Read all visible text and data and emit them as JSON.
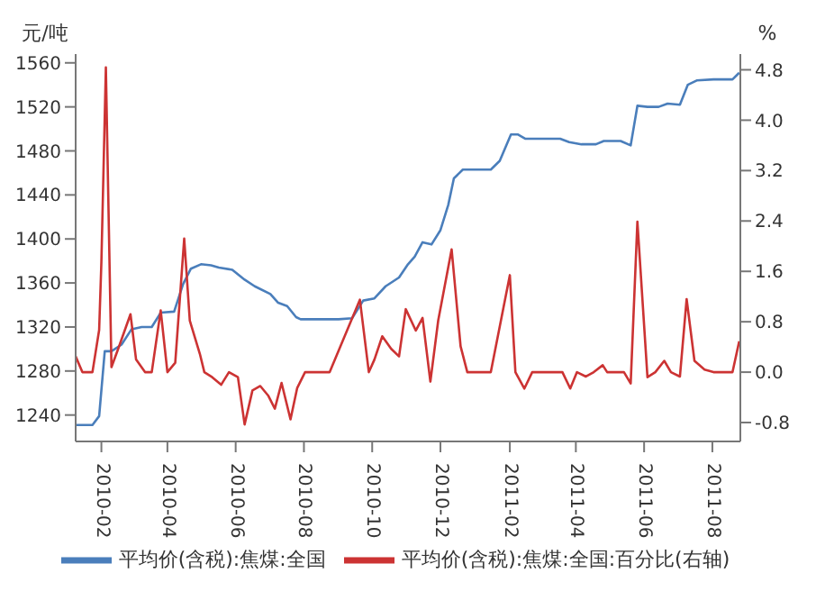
{
  "chart_data": {
    "type": "line",
    "ylabel": "元/吨",
    "y2label": "%",
    "xlim": [
      "2010-01-09",
      "2011-08-26"
    ],
    "xticks": [
      "2010-02",
      "2010-04",
      "2010-06",
      "2010-08",
      "2010-10",
      "2010-12",
      "2011-02",
      "2011-04",
      "2011-06",
      "2011-08"
    ],
    "ylim": [
      1216,
      1568
    ],
    "yticks": [
      1240,
      1280,
      1320,
      1360,
      1400,
      1440,
      1480,
      1520,
      1560
    ],
    "y2lim": [
      -1.1,
      5.05
    ],
    "y2ticks": [
      {
        "value": -0.8,
        "label": "-0.8"
      },
      {
        "value": 0,
        "label": "0.0"
      },
      0.8,
      1.6,
      2.4,
      3.2,
      {
        "value": 4,
        "label": "4.0"
      },
      4.8
    ],
    "legend": "bottom",
    "series": [
      {
        "name": "平均价(含税):焦煤:全国",
        "color": "#4a7ebb",
        "x": [
          "2010-01-09",
          "2010-01-24",
          "2010-01-30",
          "2010-02-04",
          "2010-02-10",
          "2010-02-19",
          "2010-02-28",
          "2010-03-09",
          "2010-03-18",
          "2010-03-26",
          "2010-04-07",
          "2010-04-15",
          "2010-04-22",
          "2010-05-01",
          "2010-05-10",
          "2010-05-17",
          "2010-05-29",
          "2010-06-09",
          "2010-06-18",
          "2010-07-02",
          "2010-07-09",
          "2010-07-17",
          "2010-07-25",
          "2010-07-29",
          "2010-09-01",
          "2010-09-13",
          "2010-09-23",
          "2010-10-03",
          "2010-10-13",
          "2010-10-25",
          "2010-11-02",
          "2010-11-08",
          "2010-11-15",
          "2010-11-23",
          "2010-12-01",
          "2010-12-08",
          "2010-12-13",
          "2010-12-21",
          "2011-01-15",
          "2011-01-23",
          "2011-02-02",
          "2011-02-08",
          "2011-02-15",
          "2011-03-18",
          "2011-03-26",
          "2011-04-06",
          "2011-04-19",
          "2011-04-26",
          "2011-05-11",
          "2011-05-20",
          "2011-05-26",
          "2011-06-04",
          "2011-06-14",
          "2011-06-22",
          "2011-07-03",
          "2011-07-10",
          "2011-07-18",
          "2011-08-02",
          "2011-08-19",
          "2011-08-25"
        ],
        "values": [
          1231,
          1231,
          1239,
          1298,
          1298,
          1304,
          1318,
          1320,
          1320,
          1333,
          1334,
          1359,
          1373,
          1377,
          1376,
          1374,
          1372,
          1363,
          1357,
          1350,
          1342,
          1339,
          1329,
          1327,
          1327,
          1328,
          1344,
          1346,
          1357,
          1365,
          1377,
          1384,
          1397,
          1395,
          1408,
          1431,
          1455,
          1463,
          1463,
          1471,
          1495,
          1495,
          1491,
          1491,
          1488,
          1486,
          1486,
          1489,
          1489,
          1485,
          1521,
          1520,
          1520,
          1523,
          1522,
          1540,
          1544,
          1545,
          1545,
          1551
        ]
      },
      {
        "name": "平均价(含税):焦煤:全国:百分比(右轴)",
        "color": "#cc3333",
        "axis": "y2",
        "x": [
          "2010-01-09",
          "2010-01-15",
          "2010-01-24",
          "2010-01-30",
          "2010-02-01",
          "2010-02-05",
          "2010-02-10",
          "2010-02-16",
          "2010-02-27",
          "2010-03-04",
          "2010-03-12",
          "2010-03-18",
          "2010-03-26",
          "2010-04-01",
          "2010-04-08",
          "2010-04-16",
          "2010-04-21",
          "2010-04-30",
          "2010-05-04",
          "2010-05-11",
          "2010-05-19",
          "2010-05-26",
          "2010-06-03",
          "2010-06-09",
          "2010-06-16",
          "2010-06-23",
          "2010-06-30",
          "2010-07-06",
          "2010-07-12",
          "2010-07-20",
          "2010-07-26",
          "2010-08-02",
          "2010-08-24",
          "2010-09-20",
          "2010-09-28",
          "2010-10-03",
          "2010-10-10",
          "2010-10-18",
          "2010-10-25",
          "2010-10-31",
          "2010-11-09",
          "2010-11-15",
          "2010-11-22",
          "2010-11-29",
          "2010-12-11",
          "2010-12-19",
          "2010-12-25",
          "2011-01-15",
          "2011-02-01",
          "2011-02-06",
          "2011-02-14",
          "2011-02-21",
          "2011-03-20",
          "2011-03-27",
          "2011-04-02",
          "2011-04-10",
          "2011-04-17",
          "2011-04-25",
          "2011-04-29",
          "2011-05-14",
          "2011-05-20",
          "2011-05-26",
          "2011-06-04",
          "2011-06-11",
          "2011-06-19",
          "2011-06-25",
          "2011-07-03",
          "2011-07-09",
          "2011-07-16",
          "2011-07-25",
          "2011-08-02",
          "2011-08-19",
          "2011-08-25"
        ],
        "values": [
          0.25,
          0,
          0,
          0.67,
          1.75,
          4.84,
          0.08,
          0.37,
          0.92,
          0.2,
          0,
          0,
          0.98,
          0,
          0.15,
          2.12,
          0.82,
          0.29,
          0,
          -0.08,
          -0.2,
          0,
          -0.08,
          -0.83,
          -0.29,
          -0.22,
          -0.37,
          -0.58,
          -0.17,
          -0.75,
          -0.25,
          0,
          0,
          1.15,
          0,
          0.2,
          0.57,
          0.37,
          0.25,
          1.0,
          0.66,
          0.86,
          -0.15,
          0.82,
          1.95,
          0.41,
          0,
          0,
          1.54,
          0,
          -0.26,
          0,
          0,
          -0.26,
          0,
          -0.07,
          0,
          0.11,
          0,
          0,
          -0.18,
          2.39,
          -0.08,
          0,
          0.18,
          0,
          -0.07,
          1.16,
          0.18,
          0.04,
          0,
          0,
          0.49
        ]
      }
    ]
  }
}
